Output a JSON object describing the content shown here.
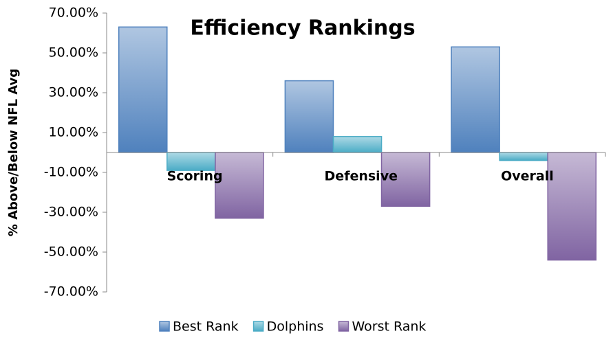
{
  "chart_data": {
    "type": "bar",
    "title": "Efficiency Rankings",
    "y_label": "% Above/Below NFL Avg",
    "categories": [
      "Scoring",
      "Defensive",
      "Overall"
    ],
    "series": [
      {
        "name": "Best Rank",
        "color": "#4f81bd",
        "values": [
          63,
          36,
          53
        ]
      },
      {
        "name": "Dolphins",
        "color": "#4bacc6",
        "values": [
          -9,
          8,
          -4
        ]
      },
      {
        "name": "Worst Rank",
        "color": "#8064a2",
        "values": [
          -33,
          -27,
          -54
        ]
      }
    ],
    "ylim": [
      -70,
      70
    ],
    "yticks": [
      {
        "value": -70,
        "label": "-70.00%"
      },
      {
        "value": -50,
        "label": "-50.00%"
      },
      {
        "value": -30,
        "label": "-30.00%"
      },
      {
        "value": -10,
        "label": "-10.00%"
      },
      {
        "value": 10,
        "label": "10.00%"
      },
      {
        "value": 30,
        "label": "30.00%"
      },
      {
        "value": 50,
        "label": "50.00%"
      },
      {
        "value": 70,
        "label": "70.00%"
      }
    ],
    "legend": "bottom"
  }
}
